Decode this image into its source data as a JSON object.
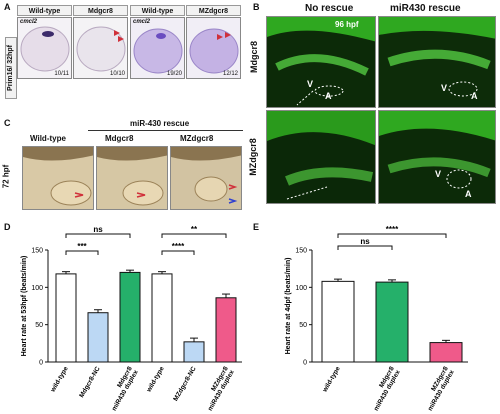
{
  "panelA": {
    "letter": "A",
    "side_label": "Prim16/ 32hpf",
    "columns": [
      {
        "title": "Wild-type",
        "marker": "cmcl2",
        "count": "10/11"
      },
      {
        "title": "Mdgcr8",
        "marker": "",
        "count": "10/10"
      },
      {
        "title": "Wild-type",
        "marker": "cmcl2",
        "count": "19/20"
      },
      {
        "title": "MZdgcr8",
        "marker": "",
        "count": "12/12"
      }
    ]
  },
  "panelB": {
    "letter": "B",
    "col_titles": [
      "No rescue",
      "miR430 rescue"
    ],
    "row_labels": [
      "Mdgcr8",
      "MZdgcr8"
    ],
    "stage": "96 hpf",
    "v_label": "V",
    "a_label": "A"
  },
  "panelC": {
    "letter": "C",
    "rescue_title": "miR-430 rescue",
    "stage": "72 hpf",
    "col_titles": [
      "Wild-type",
      "Mdgcr8",
      "MZdgcr8"
    ]
  },
  "chart_data": [
    {
      "panel": "D",
      "type": "bar",
      "ylabel": "Heart rate at 53hpf (beats/min)",
      "ylim": [
        0,
        150
      ],
      "yticks": [
        0,
        50,
        100,
        150
      ],
      "categories": [
        "wild-type",
        "Mdgcr8-NC",
        "Mdgcr8 miR430 duplex",
        "wild-type",
        "MZdgcr8-NC",
        "MZdgcr8 miR430 duplex"
      ],
      "values": [
        118,
        66,
        120,
        118,
        27,
        86
      ],
      "errors": [
        3,
        4,
        3,
        3,
        5,
        5
      ],
      "colors": [
        "#ffffff",
        "#bcd8f4",
        "#25b06a",
        "#ffffff",
        "#bcd8f4",
        "#ef5a8a"
      ],
      "significance": [
        {
          "from": 0,
          "to": 1,
          "label": "***"
        },
        {
          "from": 0,
          "to": 2,
          "label": "ns"
        },
        {
          "from": 3,
          "to": 4,
          "label": "****"
        },
        {
          "from": 3,
          "to": 5,
          "label": "**"
        }
      ]
    },
    {
      "panel": "E",
      "type": "bar",
      "ylabel": "Heart rate at 4dpf (beats/min)",
      "ylim": [
        0,
        150
      ],
      "yticks": [
        0,
        50,
        100,
        150
      ],
      "categories": [
        "wild-type",
        "Mdgcr8 miR430 duplex",
        "MZdgcr8 miR430 duplex"
      ],
      "values": [
        108,
        107,
        26
      ],
      "errors": [
        3,
        3,
        3
      ],
      "colors": [
        "#ffffff",
        "#25b06a",
        "#ef5a8a"
      ],
      "significance": [
        {
          "from": 0,
          "to": 1,
          "label": "ns"
        },
        {
          "from": 0,
          "to": 2,
          "label": "****"
        }
      ]
    }
  ]
}
